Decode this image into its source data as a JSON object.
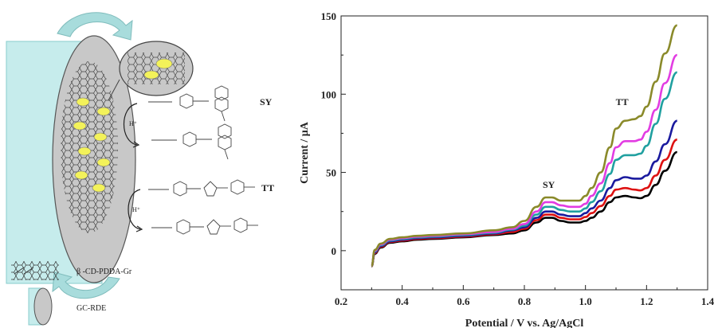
{
  "scheme": {
    "labels": {
      "sy": "SY",
      "tt": "TT",
      "h_plus_1": "H⁺",
      "h_plus_2": "H⁺"
    },
    "legend": {
      "modifier_label": "β -CD-PDDA-Gr",
      "electrode_label": "GC-RDE"
    },
    "colors": {
      "electrode_side": "#c6ecec",
      "disk_face": "#c8c8c8",
      "arrow": "#a8dcdc",
      "molecule_highlight": "#f3f25a"
    }
  },
  "chart_data": {
    "type": "line",
    "xlabel": "Potential / V vs. Ag/AgCl",
    "ylabel": "Current / μA",
    "xlim": [
      0.2,
      1.4
    ],
    "ylim": [
      -25,
      150
    ],
    "xticks": [
      "0.2",
      "0.4",
      "0.6",
      "0.8",
      "1.0",
      "1.2",
      "1.4"
    ],
    "yticks": [
      "0",
      "50",
      "100",
      "150"
    ],
    "grid": false,
    "annotations": [
      {
        "text": "SY",
        "x": 0.88,
        "y": 40
      },
      {
        "text": "TT",
        "x": 1.12,
        "y": 93
      }
    ],
    "series": [
      {
        "color": "#000000",
        "x": [
          0.3,
          0.31,
          0.33,
          0.36,
          0.4,
          0.45,
          0.5,
          0.6,
          0.7,
          0.76,
          0.8,
          0.84,
          0.87,
          0.89,
          0.92,
          0.95,
          0.98,
          1.0,
          1.02,
          1.05,
          1.08,
          1.1,
          1.13,
          1.16,
          1.18,
          1.2,
          1.23,
          1.26,
          1.3
        ],
        "y": [
          -10,
          -2,
          2,
          5,
          6,
          7,
          7.5,
          8.5,
          10,
          11,
          13,
          18,
          21,
          21,
          19,
          18,
          18,
          19,
          21,
          25,
          31,
          34,
          35,
          34,
          33.5,
          35,
          42,
          51,
          63
        ]
      },
      {
        "color": "#dd1111",
        "x": [
          0.3,
          0.31,
          0.33,
          0.36,
          0.4,
          0.45,
          0.5,
          0.6,
          0.7,
          0.76,
          0.8,
          0.84,
          0.87,
          0.89,
          0.92,
          0.95,
          0.98,
          1.0,
          1.02,
          1.05,
          1.08,
          1.1,
          1.13,
          1.16,
          1.18,
          1.2,
          1.23,
          1.26,
          1.3
        ],
        "y": [
          -10,
          -1.5,
          2.5,
          5.5,
          6.5,
          7.5,
          8,
          9,
          10.5,
          12,
          14,
          19.5,
          23,
          23,
          21,
          20,
          20,
          21.5,
          24,
          28.5,
          35,
          39,
          40,
          39,
          38.5,
          40,
          48,
          58,
          71
        ]
      },
      {
        "color": "#1a1a9e",
        "x": [
          0.3,
          0.31,
          0.33,
          0.36,
          0.4,
          0.45,
          0.5,
          0.6,
          0.7,
          0.76,
          0.8,
          0.84,
          0.87,
          0.89,
          0.92,
          0.95,
          0.98,
          1.0,
          1.02,
          1.05,
          1.08,
          1.1,
          1.13,
          1.16,
          1.18,
          1.2,
          1.23,
          1.26,
          1.3
        ],
        "y": [
          -10,
          -1,
          3,
          6,
          7,
          8,
          8.5,
          9.5,
          11,
          13,
          15,
          21,
          25,
          25,
          23,
          22,
          22,
          24,
          27,
          32,
          40,
          45,
          47,
          46,
          46,
          48,
          57,
          68,
          83
        ]
      },
      {
        "color": "#20a0a0",
        "x": [
          0.3,
          0.31,
          0.33,
          0.36,
          0.4,
          0.45,
          0.5,
          0.6,
          0.7,
          0.76,
          0.8,
          0.84,
          0.87,
          0.89,
          0.92,
          0.95,
          0.98,
          1.0,
          1.02,
          1.05,
          1.08,
          1.1,
          1.13,
          1.16,
          1.18,
          1.2,
          1.23,
          1.26,
          1.3
        ],
        "y": [
          -10,
          -0.5,
          3.5,
          6.5,
          7.5,
          8.5,
          9,
          10,
          11.5,
          13.5,
          16,
          23,
          28,
          28,
          26,
          25,
          25,
          27,
          31,
          38,
          49,
          58,
          61,
          61,
          62,
          67,
          81,
          97,
          114
        ]
      },
      {
        "color": "#e23ce2",
        "x": [
          0.3,
          0.31,
          0.33,
          0.36,
          0.4,
          0.45,
          0.5,
          0.6,
          0.7,
          0.76,
          0.8,
          0.84,
          0.87,
          0.89,
          0.92,
          0.95,
          0.98,
          1.0,
          1.02,
          1.05,
          1.08,
          1.1,
          1.13,
          1.16,
          1.18,
          1.2,
          1.23,
          1.26,
          1.3
        ],
        "y": [
          -10,
          0,
          4,
          7,
          8,
          9,
          9.5,
          10.5,
          12,
          14,
          17,
          25,
          31,
          31,
          29,
          28,
          28,
          30,
          35,
          43,
          56,
          66,
          70,
          70,
          71,
          76,
          90,
          107,
          125
        ]
      },
      {
        "color": "#8a8a2a",
        "x": [
          0.3,
          0.31,
          0.33,
          0.36,
          0.4,
          0.45,
          0.5,
          0.6,
          0.7,
          0.76,
          0.8,
          0.84,
          0.87,
          0.89,
          0.92,
          0.95,
          0.98,
          1.0,
          1.02,
          1.05,
          1.08,
          1.1,
          1.13,
          1.16,
          1.18,
          1.2,
          1.23,
          1.26,
          1.3
        ],
        "y": [
          -10,
          0.5,
          4.5,
          7.5,
          8.5,
          9.5,
          10,
          11,
          13,
          15,
          19,
          28,
          34,
          34,
          32,
          32,
          32,
          35,
          40,
          50,
          66,
          78,
          83,
          84,
          86,
          92,
          108,
          126,
          144
        ]
      }
    ]
  }
}
